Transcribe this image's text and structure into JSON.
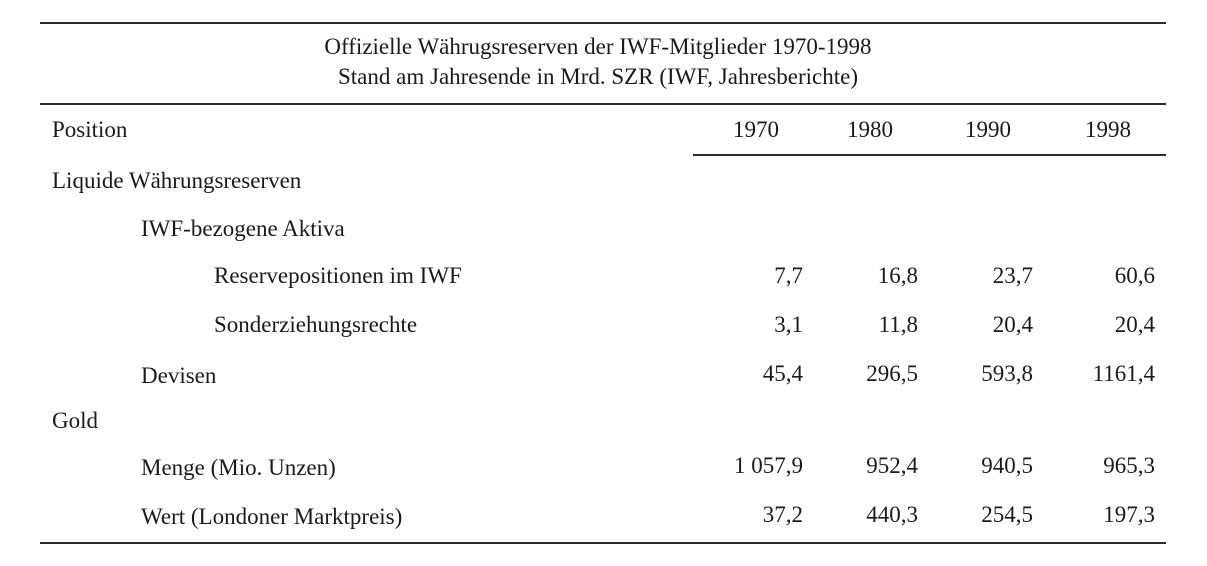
{
  "title": {
    "line1": "Offizielle Währugsreserven der IWF-Mitglieder 1970-1998",
    "line2": "Stand am Jahresende in Mrd. SZR (IWF, Jahresberichte)"
  },
  "header": {
    "position_label": "Position",
    "years": [
      "1970",
      "1980",
      "1990",
      "1998"
    ]
  },
  "rows": [
    {
      "label": "Liquide Währungsreserven",
      "values": []
    },
    {
      "label": "IWF-bezogene Aktiva",
      "values": []
    },
    {
      "label": "Reservepositionen im IWF",
      "values": [
        "7,7",
        "16,8",
        "23,7",
        "60,6"
      ]
    },
    {
      "label": "Sonderziehungsrechte",
      "values": [
        "3,1",
        "11,8",
        "20,4",
        "20,4"
      ]
    },
    {
      "label": "Devisen",
      "values": [
        "45,4",
        "296,5",
        "593,8",
        "1161,4"
      ]
    },
    {
      "label": "Gold",
      "values": []
    },
    {
      "label": "Menge (Mio. Unzen)",
      "values": [
        "1 057,9",
        "952,4",
        "940,5",
        "965,3"
      ]
    },
    {
      "label": "Wert (Londoner Marktpreis)",
      "values": [
        "37,2",
        "440,3",
        "254,5",
        "197,3"
      ]
    }
  ]
}
